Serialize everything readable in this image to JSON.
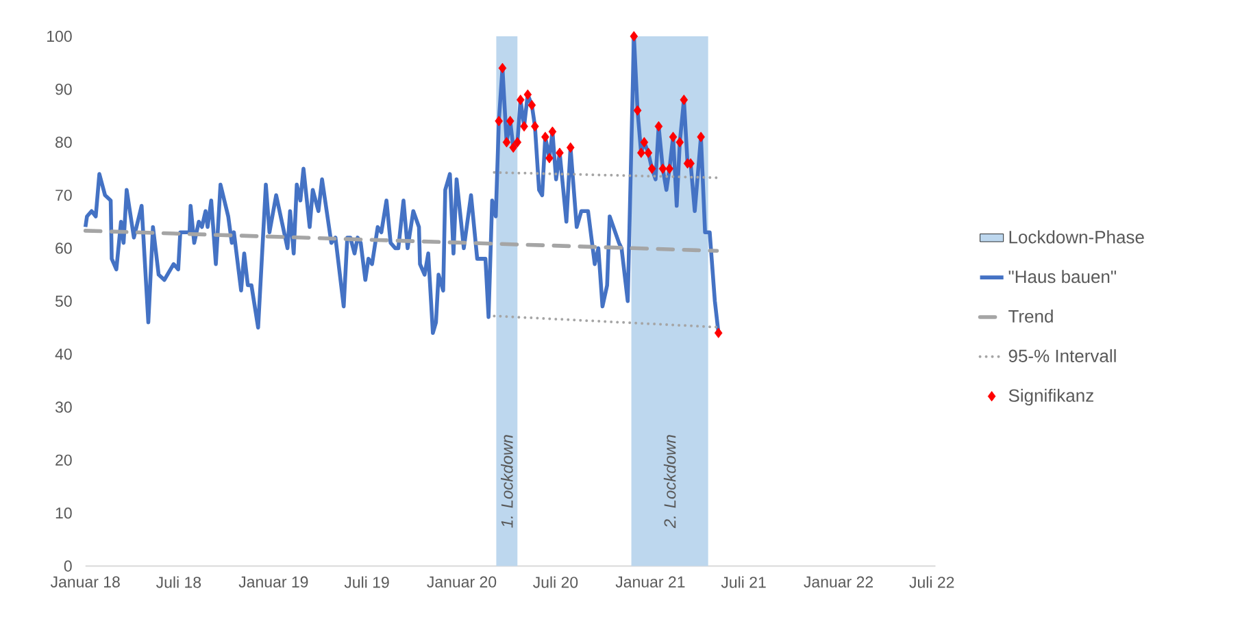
{
  "chart_data": {
    "type": "line",
    "xlim": [
      "2018-01-01",
      "2022-07-08"
    ],
    "xticks": [
      {
        "value": "2018-01-01",
        "label": "Januar 18"
      },
      {
        "value": "2018-07-01",
        "label": "Juli 18"
      },
      {
        "value": "2019-01-01",
        "label": "Januar 19"
      },
      {
        "value": "2019-07-01",
        "label": "Juli 19"
      },
      {
        "value": "2020-01-01",
        "label": "Januar 20"
      },
      {
        "value": "2020-07-01",
        "label": "Juli 20"
      },
      {
        "value": "2021-01-01",
        "label": "Januar 21"
      },
      {
        "value": "2021-07-01",
        "label": "Juli 21"
      },
      {
        "value": "2022-01-01",
        "label": "Januar 22"
      },
      {
        "value": "2022-07-01",
        "label": "Juli 22"
      }
    ],
    "ylim": [
      0,
      100
    ],
    "yticks": [
      0,
      10,
      20,
      30,
      40,
      50,
      60,
      70,
      80,
      90,
      100
    ],
    "legend": "right",
    "series": [
      {
        "name": "Lockdown-Phase",
        "type": "area",
        "color": "#bdd7ee",
        "x": [
          "2020-03-08",
          "2020-04-18",
          "2020-04-19",
          "2020-11-24",
          "2020-11-25",
          "2021-04-23"
        ],
        "values": [
          100,
          100,
          null,
          null,
          100,
          100
        ]
      },
      {
        "name": "\"Haus bauen\"",
        "color": "#4472c4",
        "line_style": "solid",
        "x": [
          "2018-01-01",
          "2018-01-04",
          "2018-01-13",
          "2018-01-21",
          "2018-01-28",
          "2018-02-08",
          "2018-02-19",
          "2018-02-21",
          "2018-03-02",
          "2018-03-11",
          "2018-03-16",
          "2018-03-22",
          "2018-04-05",
          "2018-04-20",
          "2018-05-03",
          "2018-05-12",
          "2018-05-23",
          "2018-06-03",
          "2018-06-21",
          "2018-06-30",
          "2018-07-04",
          "2018-07-22",
          "2018-07-24",
          "2018-07-31",
          "2018-08-09",
          "2018-08-15",
          "2018-08-22",
          "2018-08-26",
          "2018-09-02",
          "2018-09-11",
          "2018-09-20",
          "2018-10-05",
          "2018-10-12",
          "2018-10-16",
          "2018-10-30",
          "2018-11-05",
          "2018-11-12",
          "2018-11-19",
          "2018-12-02",
          "2018-12-17",
          "2018-12-24",
          "2019-01-06",
          "2019-01-28",
          "2019-02-02",
          "2019-02-09",
          "2019-02-15",
          "2019-02-22",
          "2019-02-28",
          "2019-03-12",
          "2019-03-18",
          "2019-03-29",
          "2019-04-05",
          "2019-04-23",
          "2019-05-01",
          "2019-05-17",
          "2019-05-24",
          "2019-05-30",
          "2019-06-07",
          "2019-06-13",
          "2019-06-19",
          "2019-06-28",
          "2019-07-04",
          "2019-07-11",
          "2019-07-22",
          "2019-07-29",
          "2019-08-08",
          "2019-08-16",
          "2019-08-25",
          "2019-08-31",
          "2019-09-10",
          "2019-09-18",
          "2019-09-29",
          "2019-10-10",
          "2019-10-12",
          "2019-10-21",
          "2019-10-28",
          "2019-11-06",
          "2019-11-12",
          "2019-11-17",
          "2019-11-26",
          "2019-11-30",
          "2019-12-09",
          "2019-12-16",
          "2019-12-22",
          "2020-01-05",
          "2020-01-19",
          "2020-01-31",
          "2020-02-16",
          "2020-02-22",
          "2020-02-29",
          "2020-03-07",
          "2020-03-13",
          "2020-03-20",
          "2020-03-28",
          "2020-04-04",
          "2020-04-10",
          "2020-04-18",
          "2020-04-24",
          "2020-05-01",
          "2020-05-08",
          "2020-05-16",
          "2020-05-22",
          "2020-05-30",
          "2020-06-05",
          "2020-06-11",
          "2020-06-19",
          "2020-06-25",
          "2020-07-02",
          "2020-07-09",
          "2020-07-22",
          "2020-07-30",
          "2020-08-11",
          "2020-08-20",
          "2020-09-02",
          "2020-09-15",
          "2020-09-22",
          "2020-09-30",
          "2020-10-09",
          "2020-10-14",
          "2020-11-01",
          "2020-11-06",
          "2020-11-18",
          "2020-11-30",
          "2020-12-07",
          "2020-12-14",
          "2020-12-20",
          "2020-12-28",
          "2021-01-04",
          "2021-01-11",
          "2021-01-17",
          "2021-01-25",
          "2021-02-01",
          "2021-02-07",
          "2021-02-14",
          "2021-02-21",
          "2021-02-27",
          "2021-03-07",
          "2021-03-14",
          "2021-03-20",
          "2021-03-28",
          "2021-04-09",
          "2021-04-17",
          "2021-04-26",
          "2021-05-06",
          "2021-05-13"
        ],
        "values": [
          64,
          66,
          67,
          66,
          74,
          70,
          69,
          58,
          56,
          65,
          61,
          71,
          62,
          68,
          46,
          64,
          55,
          54,
          57,
          56,
          63,
          63,
          68,
          61,
          65,
          64,
          67,
          64,
          69,
          57,
          72,
          66,
          61,
          63,
          52,
          59,
          53,
          53,
          45,
          72,
          63,
          70,
          60,
          67,
          59,
          72,
          69,
          75,
          64,
          71,
          67,
          73,
          61,
          62,
          49,
          62,
          62,
          59,
          62,
          61,
          54,
          58,
          57,
          64,
          63,
          69,
          61,
          60,
          60,
          69,
          60,
          67,
          64,
          57,
          55,
          59,
          44,
          46,
          55,
          52,
          71,
          74,
          59,
          73,
          60,
          70,
          58,
          58,
          47,
          69,
          66,
          84,
          94,
          80,
          84,
          79,
          80,
          88,
          83,
          89,
          87,
          83,
          71,
          70,
          81,
          77,
          82,
          73,
          78,
          65,
          79,
          64,
          67,
          67,
          57,
          60,
          49,
          53,
          66,
          61,
          60,
          50,
          100,
          86,
          78,
          80,
          78,
          75,
          73,
          83,
          75,
          71,
          75,
          81,
          68,
          80,
          88,
          76,
          76,
          67,
          81,
          63,
          63,
          50,
          44
        ]
      },
      {
        "name": "Trend",
        "type": "line",
        "color": "#a5a5a5",
        "line_style": "dashed",
        "x": [
          "2018-01-01",
          "2021-05-10"
        ],
        "values": [
          63.3,
          59.5
        ]
      },
      {
        "name": "95-% Intervall",
        "type": "line",
        "color": "#a5a5a5",
        "line_style": "dotted",
        "x": [
          "2020-03-04",
          "2021-05-10"
        ],
        "values": [
          74.3,
          73.3
        ]
      },
      {
        "type": "line",
        "color": "#a5a5a5",
        "line_style": "dotted",
        "x": [
          "2020-03-04",
          "2021-05-10"
        ],
        "values": [
          47.2,
          45.1
        ]
      },
      {
        "name": "Signifikanz",
        "type": "scatter",
        "color": "#ff0000",
        "marker": "diamond",
        "x": [
          "2020-03-13",
          "2020-03-20",
          "2020-03-28",
          "2020-04-04",
          "2020-04-10",
          "2020-04-18",
          "2020-04-24",
          "2020-05-01",
          "2020-05-08",
          "2020-05-16",
          "2020-05-22",
          "2020-06-11",
          "2020-06-19",
          "2020-06-25",
          "2020-07-09",
          "2020-07-30",
          "2020-11-30",
          "2020-12-07",
          "2020-12-14",
          "2020-12-20",
          "2020-12-28",
          "2021-01-04",
          "2021-01-17",
          "2021-01-25",
          "2021-02-07",
          "2021-02-14",
          "2021-02-27",
          "2021-03-07",
          "2021-03-14",
          "2021-03-20",
          "2021-04-09",
          "2021-05-13"
        ],
        "values": [
          84,
          94,
          80,
          84,
          79,
          80,
          88,
          83,
          89,
          87,
          83,
          81,
          77,
          82,
          78,
          79,
          100,
          86,
          78,
          80,
          78,
          75,
          83,
          75,
          75,
          81,
          80,
          88,
          76,
          76,
          81,
          44
        ]
      }
    ],
    "annotations": [
      "1. Lockdown",
      "2. Lockdown"
    ]
  }
}
